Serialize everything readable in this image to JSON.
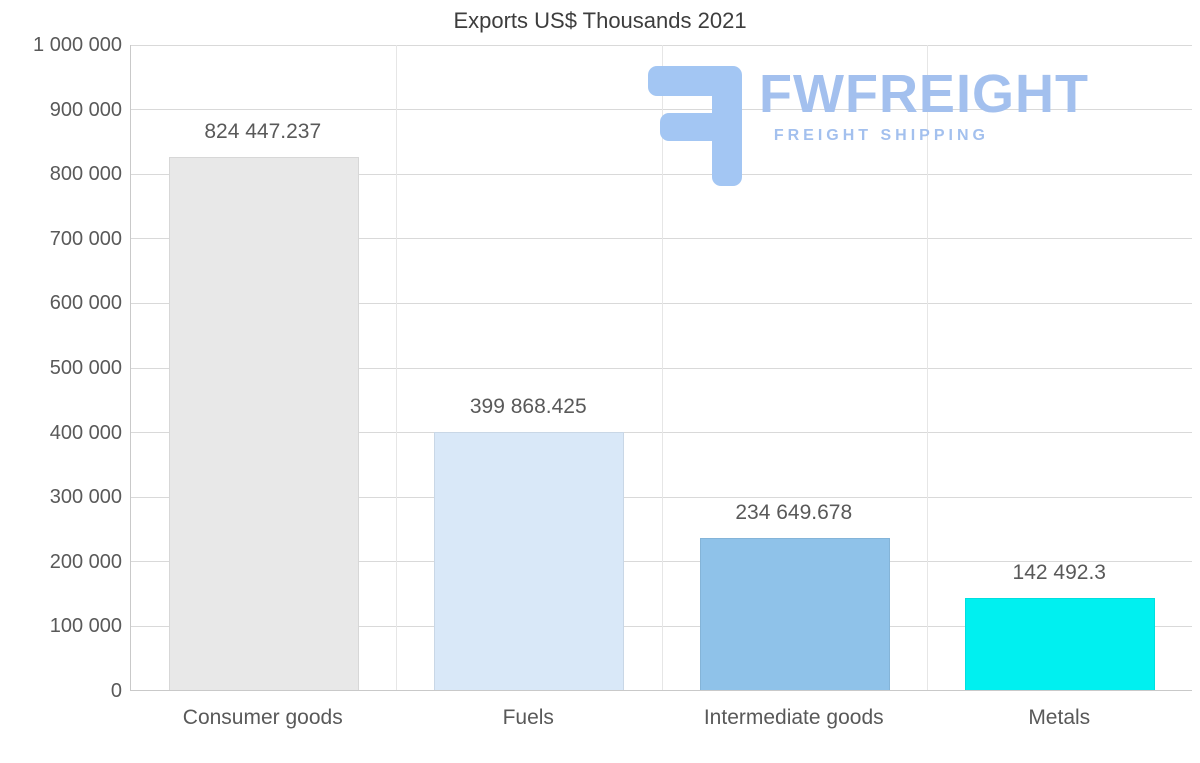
{
  "chart_data": {
    "type": "bar",
    "title": "Exports US$ Thousands 2021",
    "categories": [
      "Consumer goods",
      "Fuels",
      "Intermediate goods",
      "Metals"
    ],
    "values": [
      824447.237,
      399868.425,
      234649.678,
      142492.3
    ],
    "value_labels": [
      "824 447.237",
      "399 868.425",
      "234 649.678",
      "142 492.3"
    ],
    "bar_colors": [
      "#e8e8e8",
      "#d9e8f8",
      "#8fc2e9",
      "#00f0f0"
    ],
    "xlabel": "",
    "ylabel": "",
    "ylim": [
      0,
      1000000
    ],
    "y_ticks": [
      "0",
      "100 000",
      "200 000",
      "300 000",
      "400 000",
      "500 000",
      "600 000",
      "700 000",
      "800 000",
      "900 000",
      "1 000 000"
    ],
    "y_tick_values": [
      0,
      100000,
      200000,
      300000,
      400000,
      500000,
      600000,
      700000,
      800000,
      900000,
      1000000
    ],
    "grid": true,
    "legend": false
  },
  "logo": {
    "brand": "FWFREIGHT",
    "tagline": "FREIGHT SHIPPING",
    "color": "#a3c0ee"
  }
}
